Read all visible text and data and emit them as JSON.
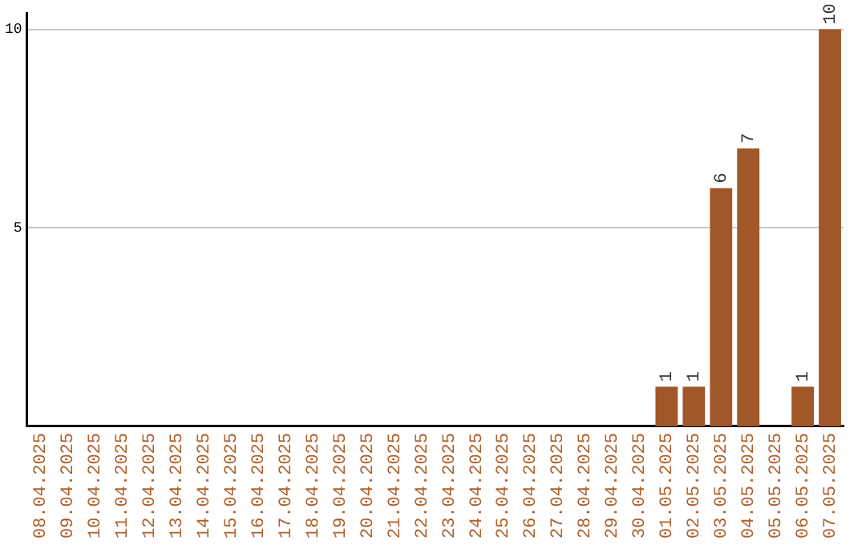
{
  "chart_data": {
    "type": "bar",
    "categories": [
      "08.04.2025",
      "09.04.2025",
      "10.04.2025",
      "11.04.2025",
      "12.04.2025",
      "13.04.2025",
      "14.04.2025",
      "15.04.2025",
      "16.04.2025",
      "17.04.2025",
      "18.04.2025",
      "19.04.2025",
      "20.04.2025",
      "21.04.2025",
      "22.04.2025",
      "23.04.2025",
      "24.04.2025",
      "25.04.2025",
      "26.04.2025",
      "27.04.2025",
      "28.04.2025",
      "29.04.2025",
      "30.04.2025",
      "01.05.2025",
      "02.05.2025",
      "03.05.2025",
      "04.05.2025",
      "05.05.2025",
      "06.05.2025",
      "07.05.2025"
    ],
    "values": [
      0,
      0,
      0,
      0,
      0,
      0,
      0,
      0,
      0,
      0,
      0,
      0,
      0,
      0,
      0,
      0,
      0,
      0,
      0,
      0,
      0,
      0,
      0,
      1,
      1,
      6,
      7,
      0,
      1,
      10
    ],
    "value_labels": [
      null,
      null,
      null,
      null,
      null,
      null,
      null,
      null,
      null,
      null,
      null,
      null,
      null,
      null,
      null,
      null,
      null,
      null,
      null,
      null,
      null,
      null,
      null,
      "1",
      "1",
      "6",
      "7",
      null,
      "1",
      "10"
    ],
    "color": "#a0582a",
    "ylim": [
      0,
      10.4
    ],
    "yticks": [
      5,
      10
    ],
    "grid": "y",
    "legend": false
  }
}
